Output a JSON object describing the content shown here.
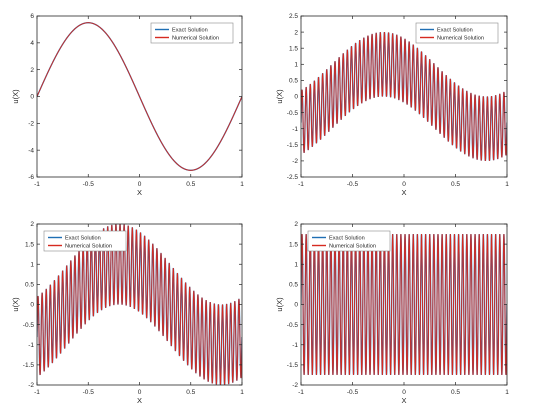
{
  "colors": {
    "exact": "#1f6fb4",
    "numerical": "#d62a20",
    "axis": "#262626",
    "background": "#ffffff"
  },
  "chart_data": [
    {
      "type": "line",
      "xlabel": "X",
      "ylabel": "u(X)",
      "xlim": [
        -1,
        1
      ],
      "ylim": [
        -6,
        6
      ],
      "xticks": [
        "-1",
        "-0.5",
        "0",
        "0.5",
        "1"
      ],
      "yticks": [
        "-6",
        "-4",
        "-2",
        "0",
        "2",
        "4",
        "6"
      ],
      "legend": "top-right",
      "grid": false,
      "series": [
        {
          "name": "Exact Solution",
          "function": "-5.5*sin(pi*x)",
          "color": "#1f6fb4"
        },
        {
          "name": "Numerical Solution",
          "function": "-5.5*sin(pi*x)",
          "color": "#d62a20"
        }
      ]
    },
    {
      "type": "line",
      "xlabel": "X",
      "ylabel": "u(X)",
      "xlim": [
        -1,
        1
      ],
      "ylim": [
        -2.5,
        2.5
      ],
      "xticks": [
        "-1",
        "-0.5",
        "0",
        "0.5",
        "1"
      ],
      "yticks": [
        "-2.5",
        "-2",
        "-1.5",
        "-1",
        "-0.5",
        "0",
        "0.5",
        "1",
        "1.5",
        "2",
        "2.5"
      ],
      "legend": "top-right",
      "grid": false,
      "series": [
        {
          "name": "Exact Solution",
          "function": "sin(pi*(x+0.7)) + sin(50*pi*x)",
          "color": "#1f6fb4"
        },
        {
          "name": "Numerical Solution",
          "function": "sin(pi*(x+0.7)) + sin(50*pi*x)",
          "color": "#d62a20"
        }
      ]
    },
    {
      "type": "line",
      "xlabel": "X",
      "ylabel": "u(X)",
      "xlim": [
        -1,
        1
      ],
      "ylim": [
        -2,
        2
      ],
      "xticks": [
        "-1",
        "-0.5",
        "0",
        "0.5",
        "1"
      ],
      "yticks": [
        "-2",
        "-1.5",
        "-1",
        "-0.5",
        "0",
        "0.5",
        "1",
        "1.5",
        "2"
      ],
      "legend": "top-left",
      "grid": false,
      "series": [
        {
          "name": "Exact Solution",
          "function": "sin(pi*(x+0.7)) + sin(50*pi*x)",
          "color": "#1f6fb4"
        },
        {
          "name": "Numerical Solution",
          "function": "sin(pi*(x+0.7)) + sin(50*pi*x)",
          "color": "#d62a20"
        }
      ]
    },
    {
      "type": "line",
      "xlabel": "X",
      "ylabel": "u(X)",
      "xlim": [
        -1,
        1
      ],
      "ylim": [
        -2,
        2
      ],
      "xticks": [
        "-1",
        "-0.5",
        "0",
        "0.5",
        "1"
      ],
      "yticks": [
        "-2",
        "-1.5",
        "-1",
        "-0.5",
        "0",
        "0.5",
        "1",
        "1.5",
        "2"
      ],
      "legend": "top-left",
      "grid": false,
      "series": [
        {
          "name": "Exact Solution",
          "function": "1.75*sin(50*pi*x)",
          "color": "#1f6fb4"
        },
        {
          "name": "Numerical Solution",
          "function": "1.75*sin(50*pi*x)",
          "color": "#d62a20"
        }
      ]
    }
  ]
}
